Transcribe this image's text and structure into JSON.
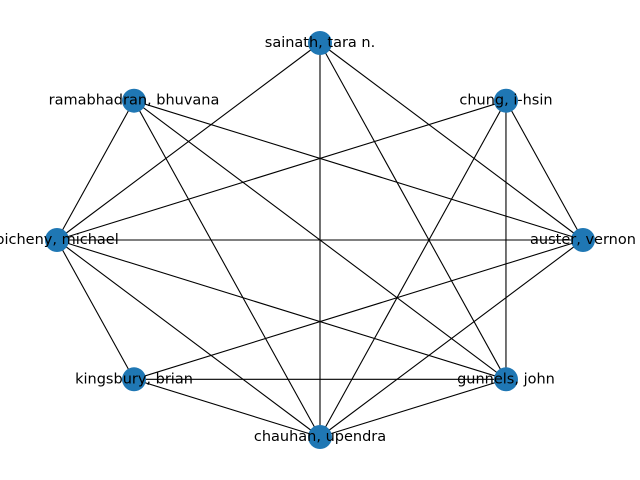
{
  "node_color": "#1f77b4",
  "edge_color": "#000000",
  "nodes": [
    {
      "id": "sainath",
      "label": "sainath, tara n."
    },
    {
      "id": "chung",
      "label": "chung, i-hsin"
    },
    {
      "id": "auster",
      "label": "auster, vernon"
    },
    {
      "id": "gunnels",
      "label": "gunnels, john"
    },
    {
      "id": "chauhan",
      "label": "chauhan, upendra"
    },
    {
      "id": "kingsbury",
      "label": "kingsbury, brian"
    },
    {
      "id": "picheny",
      "label": "picheny, michael"
    },
    {
      "id": "ramabhadran",
      "label": "ramabhadran, bhuvana"
    }
  ],
  "edges": [
    [
      "sainath",
      "picheny"
    ],
    [
      "sainath",
      "chauhan"
    ],
    [
      "sainath",
      "gunnels"
    ],
    [
      "sainath",
      "auster"
    ],
    [
      "chung",
      "picheny"
    ],
    [
      "chung",
      "chauhan"
    ],
    [
      "chung",
      "gunnels"
    ],
    [
      "chung",
      "auster"
    ],
    [
      "ramabhadran",
      "picheny"
    ],
    [
      "ramabhadran",
      "chauhan"
    ],
    [
      "ramabhadran",
      "gunnels"
    ],
    [
      "ramabhadran",
      "auster"
    ],
    [
      "picheny",
      "auster"
    ],
    [
      "picheny",
      "kingsbury"
    ],
    [
      "picheny",
      "chauhan"
    ],
    [
      "picheny",
      "gunnels"
    ],
    [
      "kingsbury",
      "chauhan"
    ],
    [
      "kingsbury",
      "gunnels"
    ],
    [
      "kingsbury",
      "auster"
    ],
    [
      "chauhan",
      "gunnels"
    ],
    [
      "chauhan",
      "auster"
    ]
  ]
}
